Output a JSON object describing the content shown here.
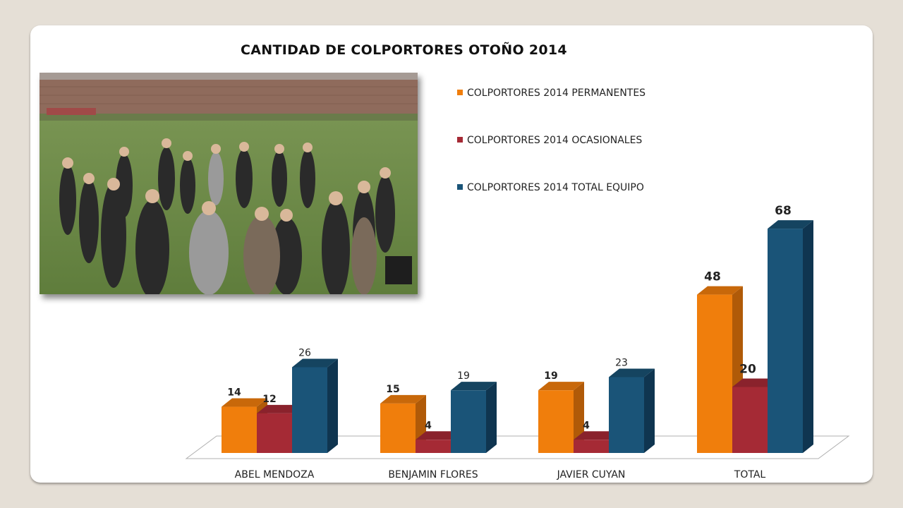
{
  "chart_data": {
    "type": "bar",
    "title": "CANTIDAD DE COLPORTORES OTOÑO 2014",
    "categories": [
      "ABEL MENDOZA",
      "BENJAMIN FLORES",
      "JAVIER CUYAN",
      "TOTAL"
    ],
    "series": [
      {
        "name": "COLPORTORES 2014 PERMANENTES",
        "color": "#f07e0c",
        "side_color": "#b05a08",
        "top_color": "#c8680a",
        "values": [
          14,
          15,
          19,
          48
        ]
      },
      {
        "name": "COLPORTORES 2014 OCASIONALES",
        "color": "#a52a35",
        "side_color": "#6e1c24",
        "top_color": "#8a222c",
        "values": [
          12,
          4,
          4,
          20
        ]
      },
      {
        "name": "COLPORTORES 2014 TOTAL EQUIPO",
        "color": "#1a5478",
        "side_color": "#0f3550",
        "top_color": "#154460",
        "values": [
          26,
          19,
          23,
          68
        ]
      }
    ],
    "data_labels": [
      [
        "14",
        "15",
        "19",
        "48"
      ],
      [
        "12",
        "4",
        "4",
        "20"
      ],
      [
        "26",
        "19",
        "23",
        "68"
      ]
    ],
    "ylim": [
      0,
      70
    ],
    "legend_position": "top-right",
    "style": "3d-clustered-column",
    "grid": false
  },
  "photo": {
    "description_icon": "group-photo"
  }
}
